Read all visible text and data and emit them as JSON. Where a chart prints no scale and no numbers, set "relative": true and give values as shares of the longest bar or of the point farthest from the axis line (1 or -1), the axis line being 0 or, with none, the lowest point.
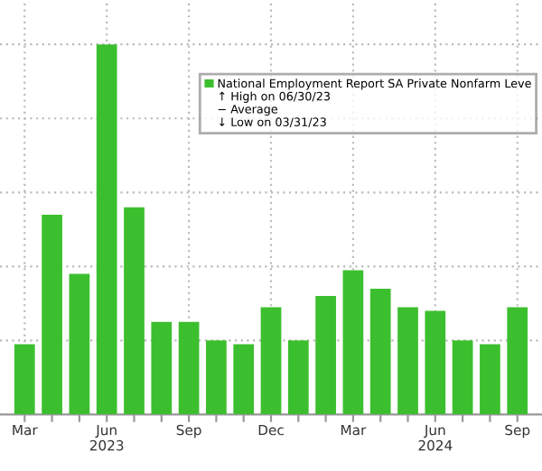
{
  "chart_data": {
    "type": "bar",
    "relative": true,
    "categories": [
      "Mar",
      null,
      null,
      "Jun\n2023",
      null,
      null,
      "Sep",
      null,
      null,
      "Dec",
      null,
      null,
      "Mar",
      null,
      null,
      "Jun\n2024",
      null,
      null,
      "Sep"
    ],
    "series": [
      {
        "name": "National Employment Report SA Private Nonfarm Leve",
        "color": "#3cbf2e",
        "values": [
          0.19,
          0.54,
          0.38,
          1,
          0.56,
          0.25,
          0.25,
          0.2,
          0.19,
          0.29,
          0.2,
          0.32,
          0.39,
          0.34,
          0.29,
          0.28,
          0.2,
          0.19,
          0.29
        ]
      }
    ],
    "annotations": [
      "↑ High on 06/30/23",
      "− Average",
      "↓ Low on 03/31/23"
    ],
    "grid": true,
    "legend": "right"
  }
}
